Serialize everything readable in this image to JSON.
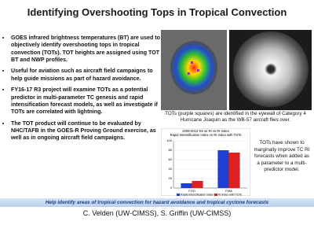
{
  "header": {
    "title": "Identifying Overshooting Tops in Tropical Convection"
  },
  "bullets": [
    "GOES infrared brightness temperatures (BT) are used to objectively identify overshooting tops in tropical convection (TOTs). TOT heights are assigned using TOT BT and NWP profiles.",
    "Useful for aviation such as aircraft field campaigns to help guide missions as part of hazard avoidance.",
    "FY16-17 R3 project will examine TOTs as a potential predictor in multi-parameter TC genesis and rapid intensification forecast models, as well as investigate if TOTs are correlated with lightning.",
    "The TOT product will continue to be evaluated by NHC/TAFB in the GOES-R Proving Ground exercise, as well as in ongoing aircraft field campaigns."
  ],
  "figure_caption": "TOTs (purple squares) are identified in the eyewall of Category 4 Hurricane Joaquin as the  WB-57 aircraft flies over.",
  "side_note": "TOTs have shown to marginally improve TC RI forecasts when added as a parameter to a multi-predictor model.",
  "chart_data": {
    "type": "bar",
    "title": "2008-2013 SS w/ RI vs RI Index",
    "subtitle": "Rapid Intensification Index vs RI Index with TOTs",
    "categories": [
      "FGD",
      "FWA"
    ],
    "series": [
      {
        "name": "Rapid intensification index",
        "color": "#1f3fd0",
        "values": [
          10,
          80
        ]
      },
      {
        "name": "RI index with TOTs",
        "color": "#e02020",
        "values": [
          15,
          75
        ]
      }
    ],
    "ylim": [
      0,
      100
    ],
    "yticks": [
      0,
      20,
      40,
      60,
      80,
      100
    ],
    "grid": true
  },
  "footer": {
    "banner": "Help identify areas of tropical convection for hazard avoidance and tropical cyclone forecasts",
    "authors": "C. Velden (UW-CIMSS), S. Griffin (UW-CIMSS)"
  }
}
